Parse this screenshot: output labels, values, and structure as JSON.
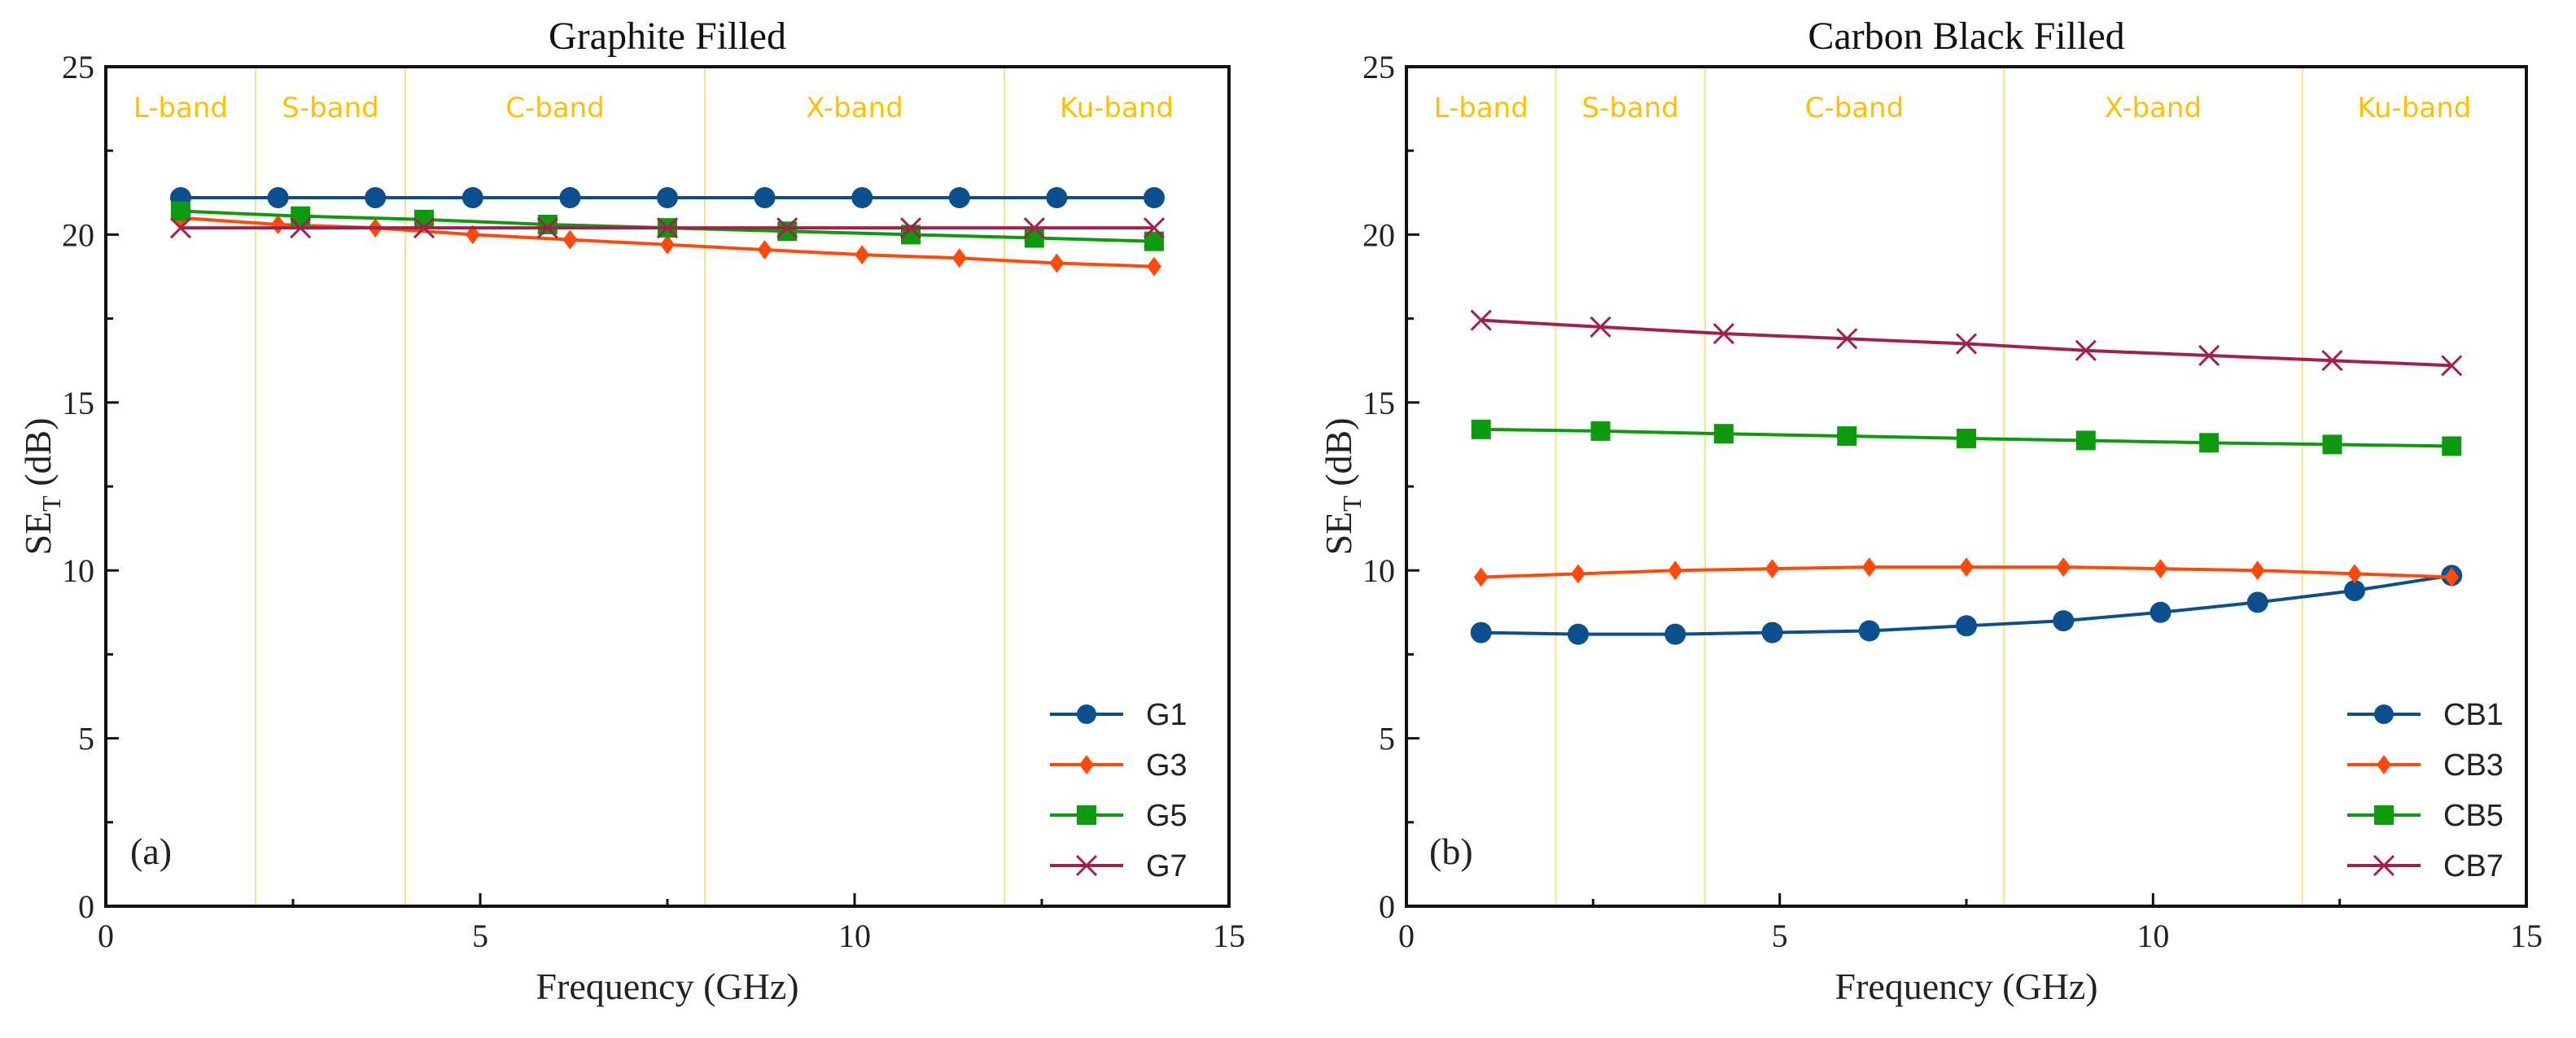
{
  "chart_data": [
    {
      "type": "line",
      "panel": "(a)",
      "title": "Graphite Filled",
      "xlabel": "Frequency (GHz)",
      "ylabel": {
        "main": "SE",
        "sub": "T",
        "unit": " (dB)"
      },
      "xlim": [
        0,
        15
      ],
      "ylim": [
        0,
        25
      ],
      "xticks": [
        0,
        5,
        10,
        15
      ],
      "yticks": [
        0,
        5,
        10,
        15,
        20,
        25
      ],
      "bands": [
        {
          "label": "L-band",
          "from": 0,
          "to": 2
        },
        {
          "label": "S-band",
          "from": 2,
          "to": 4
        },
        {
          "label": "C-band",
          "from": 4,
          "to": 8
        },
        {
          "label": "X-band",
          "from": 8,
          "to": 12
        },
        {
          "label": "Ku-band",
          "from": 12,
          "to": 15
        }
      ],
      "legend_position": "bottom-right",
      "series": [
        {
          "name": "G1",
          "marker": "circle",
          "color": "#0b4f8c",
          "x": [
            1,
            2.3,
            3.6,
            4.9,
            6.2,
            7.5,
            8.8,
            10.1,
            11.4,
            12.7,
            14
          ],
          "y": [
            21.1,
            21.1,
            21.1,
            21.1,
            21.1,
            21.1,
            21.1,
            21.1,
            21.1,
            21.1,
            21.1
          ]
        },
        {
          "name": "G3",
          "marker": "diamond",
          "color": "#ff4a0a",
          "x": [
            1,
            2.3,
            3.6,
            4.9,
            6.2,
            7.5,
            8.8,
            10.1,
            11.4,
            12.7,
            14
          ],
          "y": [
            20.5,
            20.3,
            20.2,
            20.0,
            19.85,
            19.7,
            19.55,
            19.4,
            19.3,
            19.15,
            19.05
          ]
        },
        {
          "name": "G5",
          "marker": "square",
          "color": "#0e9a0e",
          "x": [
            1,
            2.6,
            4.25,
            5.9,
            7.5,
            9.1,
            10.75,
            12.4,
            14
          ],
          "y": [
            20.7,
            20.55,
            20.45,
            20.3,
            20.2,
            20.1,
            20.0,
            19.9,
            19.8
          ]
        },
        {
          "name": "G7",
          "marker": "x",
          "color": "#a31f4c",
          "x": [
            1,
            2.6,
            4.25,
            5.9,
            7.5,
            9.1,
            10.75,
            12.4,
            14
          ],
          "y": [
            20.2,
            20.2,
            20.2,
            20.2,
            20.2,
            20.2,
            20.2,
            20.2,
            20.2
          ]
        }
      ]
    },
    {
      "type": "line",
      "panel": "(b)",
      "title": "Carbon Black Filled",
      "xlabel": "Frequency (GHz)",
      "ylabel": {
        "main": "SE",
        "sub": "T",
        "unit": " (dB)"
      },
      "xlim": [
        0,
        15
      ],
      "ylim": [
        0,
        25
      ],
      "xticks": [
        0,
        5,
        10,
        15
      ],
      "yticks": [
        0,
        5,
        10,
        15,
        20,
        25
      ],
      "bands": [
        {
          "label": "L-band",
          "from": 0,
          "to": 2
        },
        {
          "label": "S-band",
          "from": 2,
          "to": 4
        },
        {
          "label": "C-band",
          "from": 4,
          "to": 8
        },
        {
          "label": "X-band",
          "from": 8,
          "to": 12
        },
        {
          "label": "Ku-band",
          "from": 12,
          "to": 15
        }
      ],
      "legend_position": "bottom-right",
      "series": [
        {
          "name": "CB1",
          "marker": "circle",
          "color": "#0b4f8c",
          "x": [
            1,
            2.3,
            3.6,
            4.9,
            6.2,
            7.5,
            8.8,
            10.1,
            11.4,
            12.7,
            14
          ],
          "y": [
            8.15,
            8.1,
            8.1,
            8.15,
            8.2,
            8.35,
            8.5,
            8.75,
            9.05,
            9.4,
            9.85
          ]
        },
        {
          "name": "CB3",
          "marker": "diamond",
          "color": "#ff4a0a",
          "x": [
            1,
            2.3,
            3.6,
            4.9,
            6.2,
            7.5,
            8.8,
            10.1,
            11.4,
            12.7,
            14
          ],
          "y": [
            9.8,
            9.9,
            10.0,
            10.05,
            10.1,
            10.1,
            10.1,
            10.05,
            10.0,
            9.9,
            9.8
          ]
        },
        {
          "name": "CB5",
          "marker": "square",
          "color": "#0e9a0e",
          "x": [
            1,
            2.6,
            4.25,
            5.9,
            7.5,
            9.1,
            10.75,
            12.4,
            14
          ],
          "y": [
            14.2,
            14.15,
            14.07,
            14.0,
            13.93,
            13.87,
            13.8,
            13.75,
            13.7
          ]
        },
        {
          "name": "CB7",
          "marker": "x",
          "color": "#a31f4c",
          "x": [
            1,
            2.6,
            4.25,
            5.9,
            7.5,
            9.1,
            10.75,
            12.4,
            14
          ],
          "y": [
            17.45,
            17.25,
            17.05,
            16.9,
            16.75,
            16.55,
            16.4,
            16.25,
            16.1
          ]
        }
      ]
    }
  ]
}
